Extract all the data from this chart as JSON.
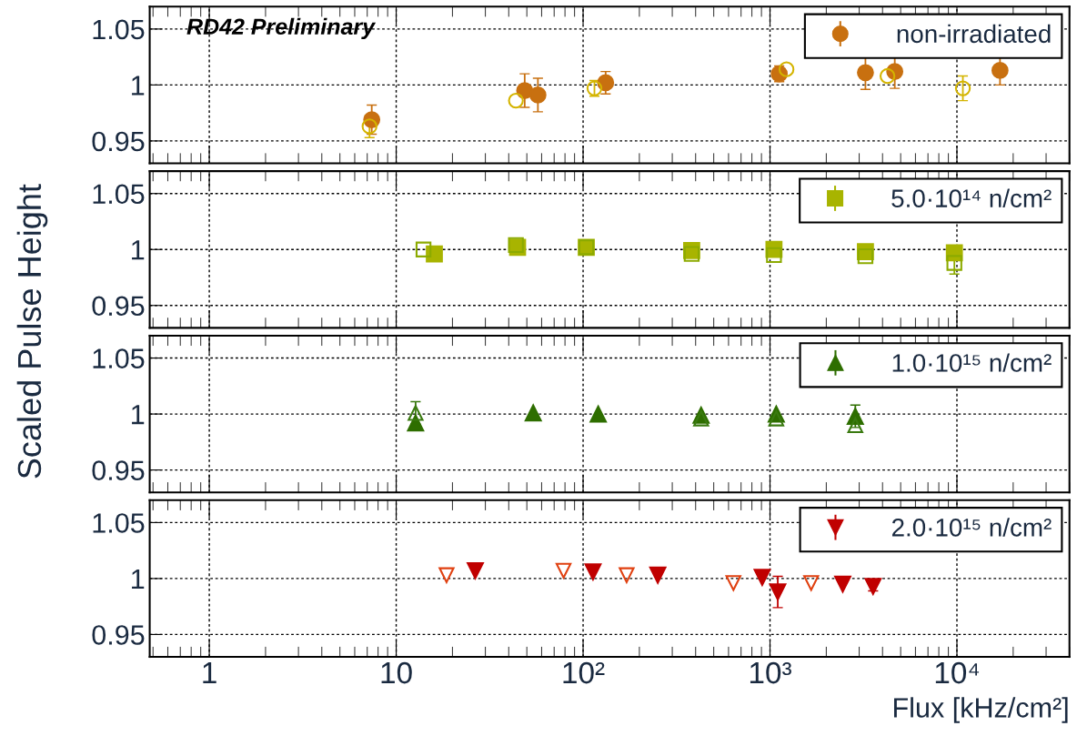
{
  "chart_data": [
    {
      "type": "scatter",
      "ylabel": "Scaled Pulse Height",
      "annotations": [
        "RD42 Preliminary"
      ],
      "xlim": [
        0.48,
        40000
      ],
      "ylim": [
        0.93,
        1.07
      ],
      "yticks": [
        0.95,
        1,
        1.05
      ],
      "xticks": [
        {
          "value": 1,
          "label": null
        },
        {
          "value": 10,
          "label": null
        },
        {
          "value": 100,
          "label": null
        },
        {
          "value": 1000,
          "label": null
        },
        {
          "value": 10000,
          "label": null
        }
      ],
      "log": "x",
      "grid": true,
      "legend": "top right",
      "tick_labels": "y",
      "series": [
        {
          "name": "non-irradiated",
          "color": "#c87010",
          "marker": "circle",
          "x": [
            7.4,
            48.7,
            57.3,
            132,
            1120,
            3240,
            4650,
            17000
          ],
          "values": [
            0.969,
            0.995,
            0.991,
            1.002,
            1.01,
            1.011,
            1.012,
            1.013
          ],
          "errors": [
            0.013,
            0.015,
            0.015,
            0.01,
            0.007,
            0.015,
            0.015,
            0.013
          ]
        },
        {
          "color": "#d4b400",
          "marker": "circle",
          "x": [
            7.2,
            43.7,
            115,
            1225,
            4250,
            10760
          ],
          "values": [
            0.963,
            0.986,
            0.997,
            1.014,
            1.008,
            0.997
          ],
          "errors": [
            0.01,
            null,
            0.007,
            null,
            null,
            0.011
          ]
        }
      ]
    },
    {
      "type": "scatter",
      "xlim": [
        0.48,
        40000
      ],
      "ylim": [
        0.93,
        1.07
      ],
      "yticks": [
        0.95,
        1,
        1.05
      ],
      "xticks": [
        {
          "value": 1,
          "label": null
        },
        {
          "value": 10,
          "label": null
        },
        {
          "value": 100,
          "label": null
        },
        {
          "value": 1000,
          "label": null
        },
        {
          "value": 10000,
          "label": null
        }
      ],
      "log": "x",
      "grid": true,
      "legend": "top right",
      "tick_labels": "y",
      "series": [
        {
          "name": "5.0·10¹⁴ n/cm²",
          "color": "#a8b400",
          "marker": "square",
          "x": [
            16.0,
            44.6,
            104,
            381,
            1050,
            3240,
            9690
          ],
          "values": [
            0.996,
            1.002,
            1.002,
            0.999,
            1.0,
            0.998,
            0.997
          ],
          "errors": [
            null,
            null,
            null,
            null,
            null,
            null,
            0.006
          ]
        },
        {
          "color": "#8caa00",
          "marker": "square",
          "x": [
            14.0,
            43.7,
            104,
            381,
            1050,
            3240,
            9690
          ],
          "values": [
            1.0,
            1.004,
            1.002,
            0.996,
            0.995,
            0.994,
            0.988
          ],
          "errors": [
            null,
            null,
            null,
            null,
            null,
            null,
            0.01
          ]
        }
      ]
    },
    {
      "type": "scatter",
      "xlim": [
        0.48,
        40000
      ],
      "ylim": [
        0.93,
        1.07
      ],
      "yticks": [
        0.95,
        1,
        1.05
      ],
      "xticks": [
        {
          "value": 1,
          "label": null
        },
        {
          "value": 10,
          "label": null
        },
        {
          "value": 100,
          "label": null
        },
        {
          "value": 1000,
          "label": null
        },
        {
          "value": 10000,
          "label": null
        }
      ],
      "log": "x",
      "grid": true,
      "legend": "top right",
      "tick_labels": "y",
      "series": [
        {
          "name": "1.0·10¹⁵ n/cm²",
          "color": "#2e6e00",
          "marker": "triangle",
          "x": [
            12.7,
            54.1,
            120.5,
            428,
            1080,
            2860
          ],
          "values": [
            0.992,
            1.001,
            1.0,
            0.999,
            1.0,
            0.998
          ],
          "errors": [
            null,
            null,
            null,
            null,
            null,
            0.01
          ]
        },
        {
          "color": "#3a7a10",
          "marker": "triangle",
          "x": [
            12.7,
            54.1,
            120.5,
            428,
            1080,
            2860
          ],
          "values": [
            1.001,
            null,
            null,
            0.996,
            0.996,
            0.99
          ],
          "errors": [
            0.01,
            null,
            null,
            null,
            null,
            null
          ]
        }
      ]
    },
    {
      "type": "scatter",
      "xlabel": "Flux [kHz/cm²]",
      "xlim": [
        0.48,
        40000
      ],
      "ylim": [
        0.93,
        1.07
      ],
      "yticks": [
        0.95,
        1,
        1.05
      ],
      "xticks": [
        1,
        10,
        {
          "value": 100,
          "label": "10²"
        },
        {
          "value": 1000,
          "label": "10³"
        },
        {
          "value": 10000,
          "label": "10⁴"
        }
      ],
      "log": "x",
      "grid": true,
      "legend": "top right",
      "series": [
        {
          "name": "2.0·10¹⁵ n/cm²",
          "color": "#c00000",
          "marker": "triangle_down",
          "x": [
            26.5,
            113,
            251,
            908,
            1100,
            2450,
            3560
          ],
          "values": [
            1.007,
            1.006,
            1.003,
            1.001,
            0.988,
            0.995,
            0.993
          ],
          "errors": [
            null,
            null,
            null,
            null,
            0.014,
            null,
            0.004
          ]
        },
        {
          "color": "#e04010",
          "marker": "triangle_down",
          "x": [
            18.6,
            78.6,
            171,
            637,
            1660
          ],
          "values": [
            1.003,
            1.007,
            1.003,
            0.996,
            0.996
          ],
          "errors": [
            null,
            null,
            null,
            null,
            null
          ]
        }
      ]
    }
  ]
}
